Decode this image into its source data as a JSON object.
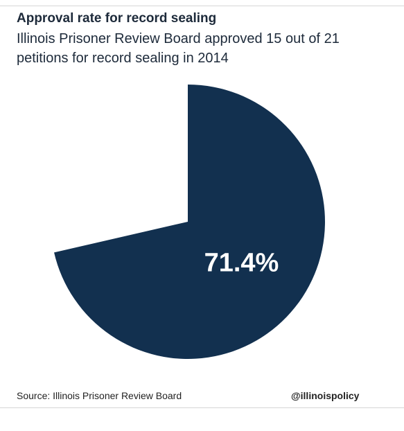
{
  "chart_data": {
    "type": "pie",
    "title": "Approval rate for record sealing",
    "subtitle": "Illinois Prisoner Review Board approved 15 out of 21 petitions for record sealing in 2014",
    "values": [
      71.4
    ],
    "value_labels": [
      "71.4%"
    ],
    "color": "#12304f",
    "source": "Source: Illinois Prisoner Review Board",
    "credit": "@illinoispolicy"
  }
}
